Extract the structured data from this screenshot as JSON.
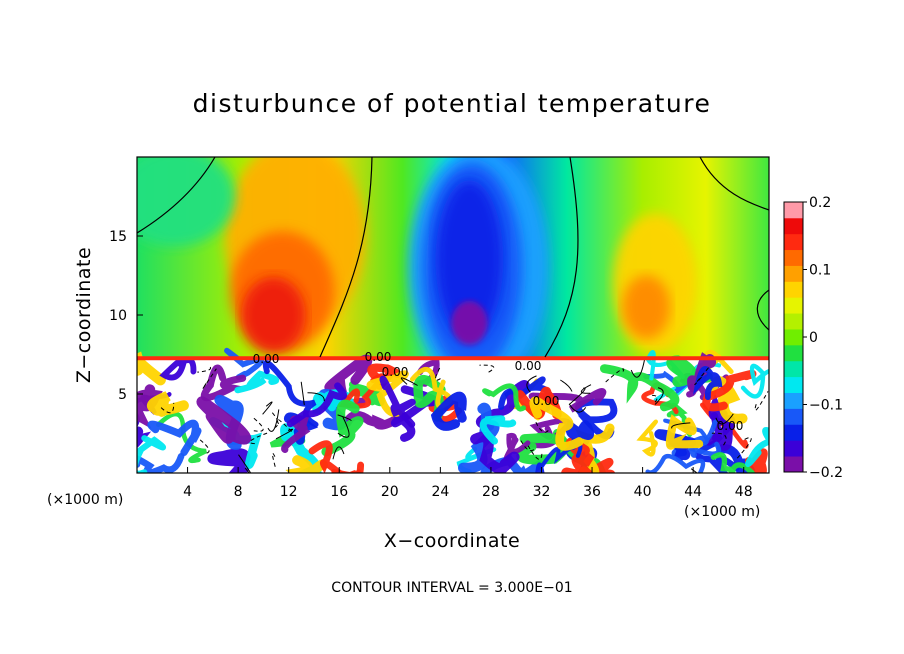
{
  "chart_data": {
    "type": "heatmap",
    "title": "disturbunce of potential temperature",
    "xlabel": "X−coordinate",
    "ylabel": "Z−coordinate",
    "x_unit": "(×1000 m)",
    "x_unit_right": "(×1000 m)",
    "xlim": [
      0,
      50
    ],
    "ylim": [
      0,
      20
    ],
    "x_ticks": [
      4,
      8,
      12,
      16,
      20,
      24,
      28,
      32,
      36,
      40,
      44,
      48
    ],
    "x_tick_labels": [
      "4",
      "8",
      "12",
      "16",
      "20",
      "24",
      "28",
      "32",
      "36",
      "40",
      "44",
      "48"
    ],
    "y_ticks": [
      5,
      10,
      15
    ],
    "y_tick_labels": [
      "5",
      "10",
      "15"
    ],
    "colorbar": {
      "min": -0.2,
      "max": 0.2,
      "labels": [
        "0.2",
        "0.1",
        "0",
        "−0.1",
        "−0.2"
      ],
      "label_values": [
        0.2,
        0.1,
        0,
        -0.1,
        -0.2
      ],
      "colors": [
        "#7a0fa8",
        "#3b00d8",
        "#0820e8",
        "#1858f8",
        "#1aa0ff",
        "#00e8f0",
        "#00e6a8",
        "#20e040",
        "#70ee00",
        "#b4f000",
        "#e6f400",
        "#ffd400",
        "#ffa000",
        "#ff6a00",
        "#ff2a10",
        "#ee0a0a",
        "#ff9aa8"
      ]
    },
    "layer_top_z": 7.2,
    "contour_labels": [
      "0.00",
      "0.00",
      "0.00",
      "0.00",
      "0.00",
      "0.00"
    ],
    "warm_features": [
      {
        "x": 11,
        "z": 11.5,
        "value": 0.17
      },
      {
        "x": 13,
        "z": 15,
        "value": 0.1
      },
      {
        "x": 40,
        "z": 10.5,
        "value": 0.12
      },
      {
        "x": 42,
        "z": 15,
        "value": 0.07
      }
    ],
    "cold_features": [
      {
        "x": 26,
        "z": 13.5,
        "value": -0.17
      },
      {
        "x": 28,
        "z": 10,
        "value": -0.15
      }
    ]
  },
  "footer": {
    "contour_interval": "CONTOUR INTERVAL = 3.000E−01"
  }
}
